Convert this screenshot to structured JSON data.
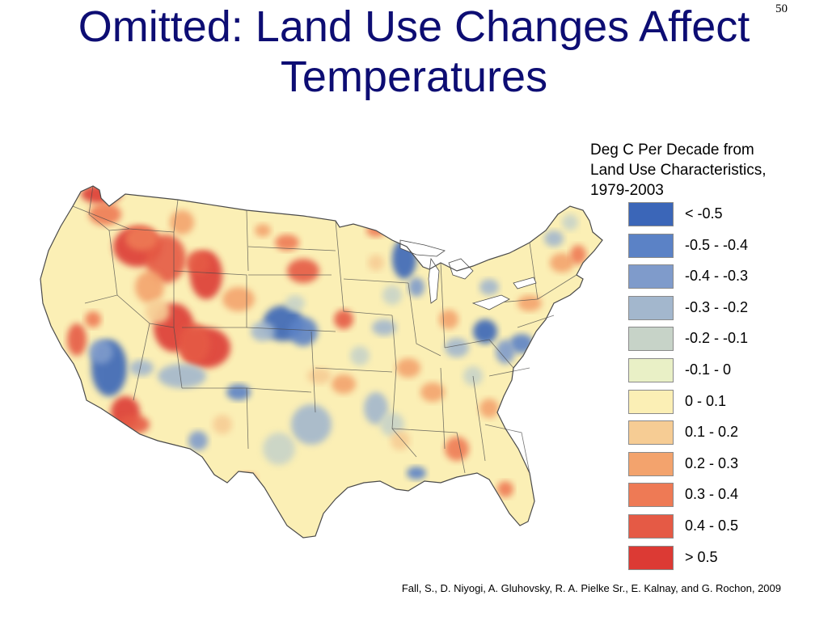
{
  "slide": {
    "title": "Omitted:  Land Use Changes Affect Temperatures",
    "page_number": "50"
  },
  "legend": {
    "title_lines": [
      "Deg C Per Decade from",
      "Land Use Characteristics,",
      "1979-2003"
    ],
    "items": [
      {
        "label": "< -0.5",
        "color": "#3b66b8"
      },
      {
        "label": "-0.5 - -0.4",
        "color": "#5b82c6"
      },
      {
        "label": "-0.4 - -0.3",
        "color": "#7f9bcb"
      },
      {
        "label": "-0.3 - -0.2",
        "color": "#a3b7cd"
      },
      {
        "label": "-0.2 - -0.1",
        "color": "#c7d3c8"
      },
      {
        "label": "-0.1 - 0",
        "color": "#e9f0c6"
      },
      {
        "label": "0 - 0.1",
        "color": "#fbefb5"
      },
      {
        "label": "0.1 - 0.2",
        "color": "#f6cc94"
      },
      {
        "label": "0.2 - 0.3",
        "color": "#f3a36d"
      },
      {
        "label": "0.3 - 0.4",
        "color": "#ee7a55"
      },
      {
        "label": "0.4 - 0.5",
        "color": "#e55a45"
      },
      {
        "label": "> 0.5",
        "color": "#dc3a34"
      }
    ]
  },
  "map": {
    "base_color": "#fbefb5",
    "border_color": "#4a4a4a",
    "water_color": "#ffffff"
  },
  "citation": "Fall, S., D. Niyogi, A. Gluhovsky, R. A. Pielke Sr., E. Kalnay, and G. Rochon, 2009"
}
